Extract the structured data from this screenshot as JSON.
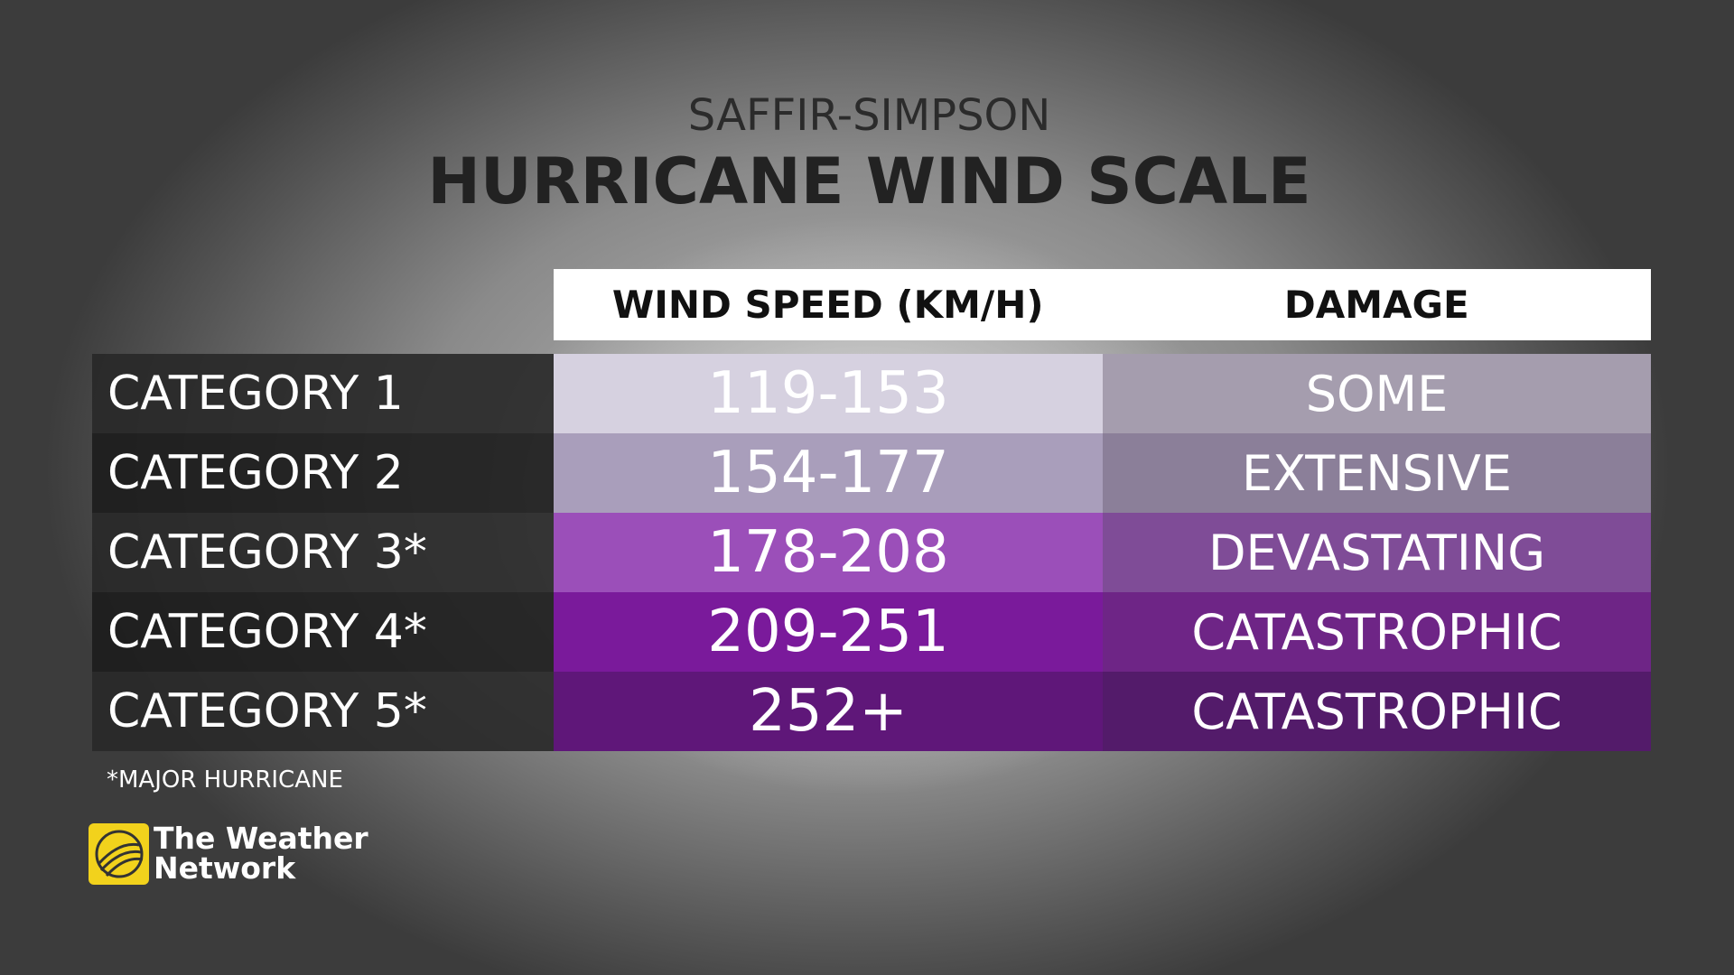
{
  "header": {
    "subtitle": "SAFFIR-SIMPSON",
    "title": "HURRICANE WIND SCALE"
  },
  "table": {
    "columns": [
      "WIND SPEED (KM/H)",
      "DAMAGE"
    ],
    "rows": [
      [
        "CATEGORY 1",
        "119-153",
        "SOME"
      ],
      [
        "CATEGORY 2",
        "154-177",
        "EXTENSIVE"
      ],
      [
        "CATEGORY 3*",
        "178-208",
        "DEVASTATING"
      ],
      [
        "CATEGORY 4*",
        "209-251",
        "CATASTROPHIC"
      ],
      [
        "CATEGORY 5*",
        "252+",
        "CATASTROPHIC"
      ]
    ]
  },
  "footnote": "*MAJOR HURRICANE",
  "logo": {
    "lines": [
      "The Weather",
      "Network"
    ]
  }
}
